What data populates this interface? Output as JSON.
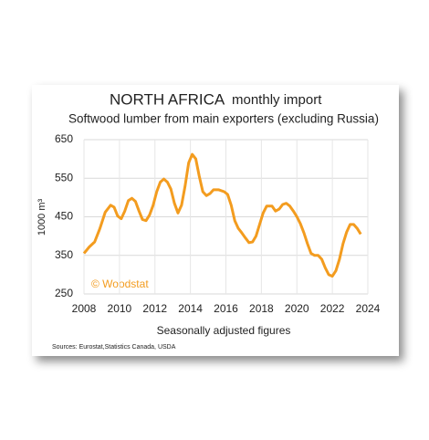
{
  "chart_data": {
    "type": "line",
    "title": "NORTH AFRICA",
    "title_suffix": "monthly import",
    "subtitle": "Softwood lumber from main exporters (excluding Russia)",
    "y_label": "1000 m³",
    "x_label": "Seasonally adjusted figures",
    "source": "Sources: Eurostat,Statistics Canada, USDA",
    "watermark": "© Woodstat",
    "grid": true,
    "xlim": [
      2008,
      2024
    ],
    "xticks": [
      2008,
      2010,
      2012,
      2014,
      2016,
      2018,
      2020,
      2022,
      2024
    ],
    "ylim": [
      250,
      650
    ],
    "yticks": [
      250,
      350,
      450,
      550,
      650
    ],
    "x": [
      2008.0,
      2008.3,
      2008.6,
      2008.9,
      2009.2,
      2009.5,
      2009.7,
      2009.9,
      2010.1,
      2010.3,
      2010.5,
      2010.7,
      2010.9,
      2011.1,
      2011.3,
      2011.5,
      2011.7,
      2011.9,
      2012.1,
      2012.3,
      2012.5,
      2012.7,
      2012.9,
      2013.1,
      2013.3,
      2013.5,
      2013.7,
      2013.9,
      2014.1,
      2014.3,
      2014.5,
      2014.7,
      2014.9,
      2015.1,
      2015.3,
      2015.6,
      2015.9,
      2016.1,
      2016.3,
      2016.5,
      2016.7,
      2016.9,
      2017.1,
      2017.3,
      2017.5,
      2017.7,
      2017.9,
      2018.1,
      2018.3,
      2018.6,
      2018.8,
      2019.0,
      2019.2,
      2019.4,
      2019.6,
      2019.8,
      2020.0,
      2020.2,
      2020.4,
      2020.6,
      2020.8,
      2021.0,
      2021.2,
      2021.4,
      2021.6,
      2021.8,
      2022.0,
      2022.2,
      2022.4,
      2022.6,
      2022.8,
      2023.0,
      2023.2,
      2023.4,
      2023.6
    ],
    "series": [
      {
        "color": "#f39c1f",
        "values": [
          355,
          372,
          385,
          420,
          462,
          480,
          475,
          452,
          445,
          465,
          492,
          498,
          490,
          465,
          443,
          440,
          455,
          480,
          515,
          540,
          548,
          540,
          522,
          485,
          460,
          480,
          530,
          590,
          612,
          600,
          555,
          515,
          505,
          510,
          520,
          520,
          515,
          508,
          480,
          440,
          420,
          408,
          395,
          383,
          385,
          400,
          430,
          460,
          478,
          478,
          465,
          470,
          482,
          485,
          478,
          465,
          450,
          432,
          408,
          380,
          355,
          350,
          350,
          340,
          318,
          300,
          296,
          310,
          340,
          380,
          410,
          430,
          430,
          420,
          405
        ]
      }
    ]
  }
}
